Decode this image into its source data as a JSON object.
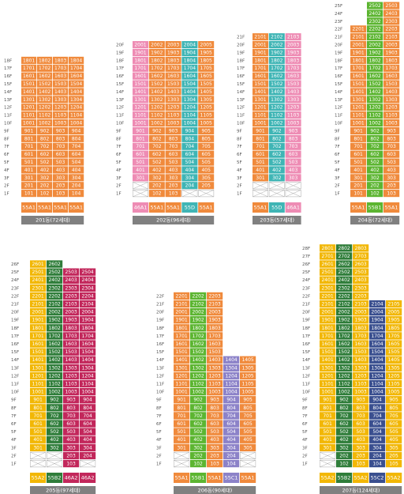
{
  "buildings": [
    {
      "name": "201동(72세대)",
      "floors": [
        "18F",
        "17F",
        "16F",
        "15F",
        "14F",
        "13F",
        "12F",
        "11F",
        "10F",
        "9F",
        "8F",
        "7F",
        "6F",
        "5F",
        "4F",
        "3F",
        "2F",
        "1F"
      ],
      "types": [
        "55A1",
        "55A1",
        "55A1",
        "55A1"
      ],
      "colors": [
        "#f08a3c",
        "#f08a3c",
        "#f08a3c",
        "#f08a3c"
      ],
      "rows": [
        [
          "1801",
          "1802",
          "1803",
          "1804"
        ],
        [
          "1701",
          "1702",
          "1703",
          "1704"
        ],
        [
          "1601",
          "1602",
          "1603",
          "1604"
        ],
        [
          "1501",
          "1502",
          "1503",
          "1504"
        ],
        [
          "1401",
          "1402",
          "1403",
          "1404"
        ],
        [
          "1301",
          "1302",
          "1303",
          "1304"
        ],
        [
          "1201",
          "1202",
          "1203",
          "1204"
        ],
        [
          "1101",
          "1102",
          "1103",
          "1104"
        ],
        [
          "1001",
          "1002",
          "1003",
          "1004"
        ],
        [
          "901",
          "902",
          "903",
          "904"
        ],
        [
          "801",
          "802",
          "803",
          "804"
        ],
        [
          "701",
          "702",
          "703",
          "704"
        ],
        [
          "601",
          "602",
          "603",
          "604"
        ],
        [
          "501",
          "502",
          "503",
          "504"
        ],
        [
          "401",
          "402",
          "403",
          "404"
        ],
        [
          "301",
          "302",
          "303",
          "304"
        ],
        [
          "201",
          "202",
          "203",
          "204"
        ],
        [
          "101",
          "102",
          "103",
          "104"
        ]
      ]
    },
    {
      "name": "202동(96세대)",
      "floors": [
        "20F",
        "19F",
        "18F",
        "17F",
        "16F",
        "15F",
        "14F",
        "13F",
        "12F",
        "11F",
        "10F",
        "9F",
        "8F",
        "7F",
        "6F",
        "5F",
        "4F",
        "3F",
        "2F",
        "1F"
      ],
      "types": [
        "46A1",
        "55A1",
        "55A1",
        "55D",
        "55A1"
      ],
      "colors": [
        "#ee8cb4",
        "#f08a3c",
        "#f08a3c",
        "#3fb5b5",
        "#f08a3c"
      ],
      "rows": [
        [
          "2001",
          "2002",
          "2003",
          "2004",
          "2005"
        ],
        [
          "1901",
          "1902",
          "1903",
          "1904",
          "1905"
        ],
        [
          "1801",
          "1802",
          "1803",
          "1804",
          "1805"
        ],
        [
          "1701",
          "1702",
          "1703",
          "1704",
          "1705"
        ],
        [
          "1601",
          "1602",
          "1603",
          "1604",
          "1605"
        ],
        [
          "1501",
          "1502",
          "1503",
          "1504",
          "1505"
        ],
        [
          "1401",
          "1402",
          "1403",
          "1404",
          "1405"
        ],
        [
          "1301",
          "1302",
          "1303",
          "1304",
          "1305"
        ],
        [
          "1201",
          "1202",
          "1203",
          "1204",
          "1205"
        ],
        [
          "1101",
          "1102",
          "1103",
          "1104",
          "1105"
        ],
        [
          "1001",
          "1002",
          "1003",
          "1004",
          "1005"
        ],
        [
          "901",
          "902",
          "903",
          "904",
          "905"
        ],
        [
          "801",
          "802",
          "803",
          "804",
          "805"
        ],
        [
          "701",
          "702",
          "703",
          "704",
          "705"
        ],
        [
          "601",
          "602",
          "603",
          "604",
          "605"
        ],
        [
          "501",
          "502",
          "503",
          "504",
          "505"
        ],
        [
          "401",
          "402",
          "403",
          "404",
          "405"
        ],
        [
          "301",
          "302",
          "303",
          "304",
          "305"
        ],
        [
          null,
          "202",
          "203",
          "204",
          "205"
        ],
        [
          null,
          "102",
          "103",
          null,
          null
        ]
      ]
    },
    {
      "name": "203동(57세대)",
      "floors": [
        "21F",
        "20F",
        "19F",
        "18F",
        "17F",
        "16F",
        "15F",
        "14F",
        "13F",
        "12F",
        "11F",
        "10F",
        "9F",
        "8F",
        "7F",
        "6F",
        "5F",
        "4F",
        "3F",
        "2F",
        "1F"
      ],
      "types": [
        "55A1",
        "55D",
        "46A1"
      ],
      "colors": [
        "#f08a3c",
        "#3fb5b5",
        "#ee8cb4"
      ],
      "rows": [
        [
          "2101",
          "2102",
          "2103"
        ],
        [
          "2001",
          "2002",
          "2003"
        ],
        [
          "1901",
          "1902",
          "1903"
        ],
        [
          "1801",
          "1802",
          "1803"
        ],
        [
          "1701",
          "1702",
          "1703"
        ],
        [
          "1601",
          "1602",
          "1603"
        ],
        [
          "1501",
          "1502",
          "1503"
        ],
        [
          "1401",
          "1402",
          "1403"
        ],
        [
          "1301",
          "1302",
          "1303"
        ],
        [
          "1201",
          "1202",
          "1203"
        ],
        [
          "1101",
          "1102",
          "1103"
        ],
        [
          "1001",
          "1002",
          "1003"
        ],
        [
          "901",
          "902",
          "903"
        ],
        [
          "801",
          "802",
          "803"
        ],
        [
          "701",
          "702",
          "703"
        ],
        [
          "601",
          "602",
          "603"
        ],
        [
          "501",
          "502",
          "503"
        ],
        [
          "401",
          "402",
          "403"
        ],
        [
          "301",
          "302",
          "303"
        ],
        [
          null,
          null,
          null
        ],
        [
          null,
          null,
          null
        ]
      ]
    },
    {
      "name": "204동(72세대)",
      "floors": [
        "25F",
        "24F",
        "23F",
        "22F",
        "21F",
        "20F",
        "19F",
        "18F",
        "17F",
        "16F",
        "15F",
        "14F",
        "13F",
        "12F",
        "11F",
        "10F",
        "9F",
        "8F",
        "7F",
        "6F",
        "5F",
        "4F",
        "3F",
        "2F",
        "1F"
      ],
      "types": [
        "55A1",
        "55B1",
        "55A1"
      ],
      "colors": [
        "#f08a3c",
        "#5cb531",
        "#f08a3c"
      ],
      "rows": [
        [
          null,
          "2502",
          "2503"
        ],
        [
          null,
          "2402",
          "2403"
        ],
        [
          null,
          "2302",
          "2303"
        ],
        [
          "2201",
          "2202",
          "2203"
        ],
        [
          "2101",
          "2102",
          "2103"
        ],
        [
          "2001",
          "2002",
          "2003"
        ],
        [
          "1901",
          "1902",
          "1903"
        ],
        [
          "1801",
          "1802",
          "1803"
        ],
        [
          "1701",
          "1702",
          "1703"
        ],
        [
          "1601",
          "1602",
          "1603"
        ],
        [
          "1501",
          "1502",
          "1503"
        ],
        [
          "1401",
          "1402",
          "1403"
        ],
        [
          "1301",
          "1302",
          "1303"
        ],
        [
          "1201",
          "1202",
          "1203"
        ],
        [
          "1101",
          "1102",
          "1103"
        ],
        [
          "1001",
          "1002",
          "1003"
        ],
        [
          "901",
          "902",
          "903"
        ],
        [
          "801",
          "802",
          "803"
        ],
        [
          "701",
          "702",
          "703"
        ],
        [
          "601",
          "602",
          "603"
        ],
        [
          "501",
          "502",
          "503"
        ],
        [
          "401",
          "402",
          "403"
        ],
        [
          "301",
          "302",
          "303"
        ],
        [
          "201",
          "202",
          "203"
        ],
        [
          "101",
          "102",
          "103"
        ]
      ]
    },
    {
      "name": "205동(97세대)",
      "floors": [
        "26F",
        "25F",
        "24F",
        "23F",
        "22F",
        "21F",
        "20F",
        "19F",
        "18F",
        "17F",
        "16F",
        "15F",
        "14F",
        "13F",
        "12F",
        "11F",
        "10F",
        "9F",
        "8F",
        "7F",
        "6F",
        "5F",
        "4F",
        "3F",
        "2F",
        "1F"
      ],
      "types": [
        "55A2",
        "55B2",
        "46A2",
        "46A2"
      ],
      "colors": [
        "#f2b705",
        "#2f7d3a",
        "#c2275b",
        "#c2275b"
      ],
      "rows": [
        [
          "2601",
          "2602",
          null,
          null
        ],
        [
          "2501",
          "2502",
          "2503",
          "2504"
        ],
        [
          "2401",
          "2402",
          "2403",
          "2404"
        ],
        [
          "2301",
          "2302",
          "2303",
          "2304"
        ],
        [
          "2201",
          "2202",
          "2203",
          "2204"
        ],
        [
          "2101",
          "2102",
          "2103",
          "2104"
        ],
        [
          "2001",
          "2002",
          "2003",
          "2004"
        ],
        [
          "1901",
          "1902",
          "1903",
          "1904"
        ],
        [
          "1801",
          "1802",
          "1803",
          "1804"
        ],
        [
          "1701",
          "1702",
          "1703",
          "1704"
        ],
        [
          "1601",
          "1602",
          "1603",
          "1604"
        ],
        [
          "1501",
          "1502",
          "1503",
          "1504"
        ],
        [
          "1401",
          "1402",
          "1403",
          "1404"
        ],
        [
          "1301",
          "1302",
          "1303",
          "1304"
        ],
        [
          "1201",
          "1202",
          "1203",
          "1204"
        ],
        [
          "1101",
          "1102",
          "1103",
          "1104"
        ],
        [
          "1001",
          "1002",
          "1003",
          "1004"
        ],
        [
          "901",
          "902",
          "903",
          "904"
        ],
        [
          "801",
          "802",
          "803",
          "804"
        ],
        [
          "701",
          "702",
          "703",
          "704"
        ],
        [
          "601",
          "602",
          "603",
          "604"
        ],
        [
          "501",
          "502",
          "503",
          "504"
        ],
        [
          "401",
          "402",
          "403",
          "404"
        ],
        [
          "301",
          "302",
          "303",
          "304"
        ],
        [
          null,
          null,
          "203",
          "204"
        ],
        [
          null,
          null,
          "103",
          null
        ]
      ]
    },
    {
      "name": "206동(90세대)",
      "floors": [
        "22F",
        "21F",
        "20F",
        "19F",
        "18F",
        "17F",
        "16F",
        "15F",
        "14F",
        "13F",
        "12F",
        "11F",
        "10F",
        "9F",
        "8F",
        "7F",
        "6F",
        "5F",
        "4F",
        "3F",
        "2F",
        "1F"
      ],
      "types": [
        "55A1",
        "55B1",
        "55A1",
        "55C1",
        "55A1"
      ],
      "colors": [
        "#f08a3c",
        "#5cb531",
        "#f08a3c",
        "#8c82c8",
        "#f08a3c"
      ],
      "rows": [
        [
          "2201",
          "2202",
          "2203",
          null,
          null
        ],
        [
          "2101",
          "2102",
          "2103",
          null,
          null
        ],
        [
          "2001",
          "2002",
          "2003",
          null,
          null
        ],
        [
          "1901",
          "1902",
          "1903",
          null,
          null
        ],
        [
          "1801",
          "1802",
          "1803",
          null,
          null
        ],
        [
          "1701",
          "1702",
          "1703",
          null,
          null
        ],
        [
          "1601",
          "1602",
          "1603",
          null,
          null
        ],
        [
          "1501",
          "1502",
          "1503",
          null,
          null
        ],
        [
          "1401",
          "1402",
          "1403",
          "1404",
          "1405"
        ],
        [
          "1301",
          "1302",
          "1303",
          "1304",
          "1305"
        ],
        [
          "1201",
          "1202",
          "1203",
          "1204",
          "1205"
        ],
        [
          "1101",
          "1102",
          "1103",
          "1104",
          "1105"
        ],
        [
          "1001",
          "1002",
          "1003",
          "1004",
          "1005"
        ],
        [
          "901",
          "902",
          "903",
          "904",
          "905"
        ],
        [
          "801",
          "802",
          "803",
          "804",
          "805"
        ],
        [
          "701",
          "702",
          "703",
          "704",
          "705"
        ],
        [
          "601",
          "602",
          "603",
          "604",
          "605"
        ],
        [
          "501",
          "502",
          "503",
          "504",
          "505"
        ],
        [
          "401",
          "402",
          "403",
          "404",
          "405"
        ],
        [
          "301",
          "302",
          "303",
          "304",
          "305"
        ],
        [
          null,
          "202",
          "203",
          "204",
          null
        ],
        [
          null,
          "102",
          "103",
          "104",
          null
        ]
      ]
    },
    {
      "name": "207동(124세대)",
      "floors": [
        "28F",
        "27F",
        "26F",
        "25F",
        "24F",
        "23F",
        "22F",
        "21F",
        "20F",
        "19F",
        "18F",
        "17F",
        "16F",
        "15F",
        "14F",
        "13F",
        "12F",
        "11F",
        "10F",
        "9F",
        "8F",
        "7F",
        "6F",
        "5F",
        "4F",
        "3F",
        "2F",
        "1F"
      ],
      "types": [
        "55A2",
        "55B2",
        "55A2",
        "55C2",
        "55A2"
      ],
      "colors": [
        "#f2b705",
        "#2f7d3a",
        "#f2b705",
        "#3a4f8f",
        "#f2b705"
      ],
      "rows": [
        [
          "2801",
          "2802",
          "2803",
          null,
          null
        ],
        [
          "2701",
          "2702",
          "2703",
          null,
          null
        ],
        [
          "2601",
          "2602",
          "2603",
          null,
          null
        ],
        [
          "2501",
          "2502",
          "2503",
          null,
          null
        ],
        [
          "2401",
          "2402",
          "2403",
          null,
          null
        ],
        [
          "2301",
          "2302",
          "2303",
          null,
          null
        ],
        [
          "2201",
          "2202",
          "2203",
          null,
          null
        ],
        [
          "2101",
          "2102",
          "2103",
          "2104",
          "2105"
        ],
        [
          "2001",
          "2002",
          "2003",
          "2004",
          "2005"
        ],
        [
          "1901",
          "1902",
          "1903",
          "1904",
          "1905"
        ],
        [
          "1801",
          "1802",
          "1803",
          "1804",
          "1805"
        ],
        [
          "1701",
          "1702",
          "1703",
          "1704",
          "1705"
        ],
        [
          "1601",
          "1602",
          "1603",
          "1604",
          "1605"
        ],
        [
          "1501",
          "1502",
          "1503",
          "1504",
          "1505"
        ],
        [
          "1401",
          "1402",
          "1403",
          "1404",
          "1405"
        ],
        [
          "1301",
          "1302",
          "1303",
          "1304",
          "1305"
        ],
        [
          "1201",
          "1202",
          "1203",
          "1204",
          "1205"
        ],
        [
          "1101",
          "1102",
          "1103",
          "1104",
          "1105"
        ],
        [
          "1001",
          "1002",
          "1003",
          "1004",
          "1005"
        ],
        [
          "901",
          "902",
          "903",
          "904",
          "905"
        ],
        [
          "801",
          "802",
          "803",
          "804",
          "805"
        ],
        [
          "701",
          "702",
          "703",
          "704",
          "705"
        ],
        [
          "601",
          "602",
          "603",
          "604",
          "605"
        ],
        [
          "501",
          "502",
          "503",
          "504",
          "505"
        ],
        [
          "401",
          "402",
          "403",
          "404",
          "405"
        ],
        [
          "301",
          "302",
          "303",
          "304",
          "305"
        ],
        [
          null,
          "202",
          "203",
          "204",
          "205"
        ],
        [
          null,
          "102",
          "103",
          "104",
          "105"
        ]
      ]
    }
  ]
}
